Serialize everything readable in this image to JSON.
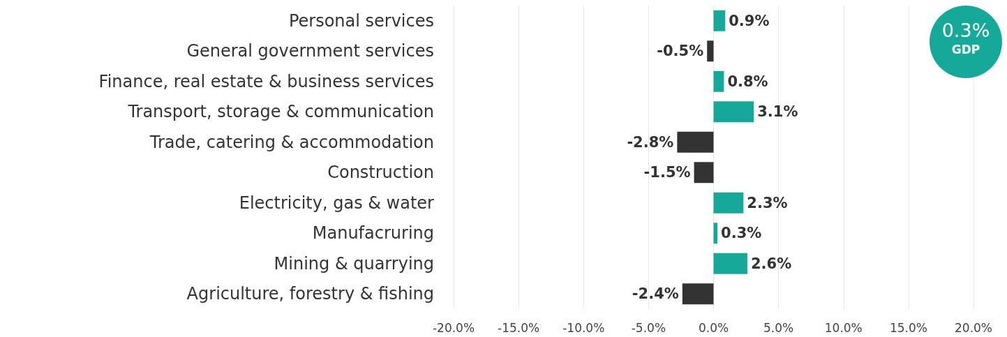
{
  "chart_data": {
    "type": "bar",
    "orientation": "horizontal",
    "categories": [
      "Personal services",
      "General government services",
      "Finance, real estate & business services",
      "Transport, storage & communication",
      "Trade, catering & accommodation",
      "Construction",
      "Electricity, gas & water",
      "Manufacruring",
      "Mining & quarrying",
      "Agriculture, forestry & fishing"
    ],
    "values": [
      0.9,
      -0.5,
      0.8,
      3.1,
      -2.8,
      -1.5,
      2.3,
      0.3,
      2.6,
      -2.4
    ],
    "colors": [
      "#16a99a",
      "#333333",
      "#16a99a",
      "#16a99a",
      "#333333",
      "#333333",
      "#16a99a",
      "#16a99a",
      "#16a99a",
      "#333333"
    ],
    "value_labels": [
      "0.9%",
      "-0.5%",
      "0.8%",
      "3.1%",
      "-2.8%",
      "-1.5%",
      "2.3%",
      "0.3%",
      "2.6%",
      "-2.4%"
    ],
    "xlim": [
      -20,
      20
    ],
    "xticks": [
      {
        "value": -20,
        "label": "-20.0%"
      },
      {
        "value": -15,
        "label": "-15.0%"
      },
      {
        "value": -10,
        "label": "-10.0%"
      },
      {
        "value": -5,
        "label": "-5.0%"
      },
      {
        "value": 0,
        "label": "0.0%"
      },
      {
        "value": 5,
        "label": "5.0%"
      },
      {
        "value": 10,
        "label": "10.0%"
      },
      {
        "value": 15,
        "label": "15.0%"
      },
      {
        "value": 20,
        "label": "20.0%"
      }
    ],
    "grid": "x",
    "annotations": [
      "0.3%",
      "GDP"
    ]
  }
}
